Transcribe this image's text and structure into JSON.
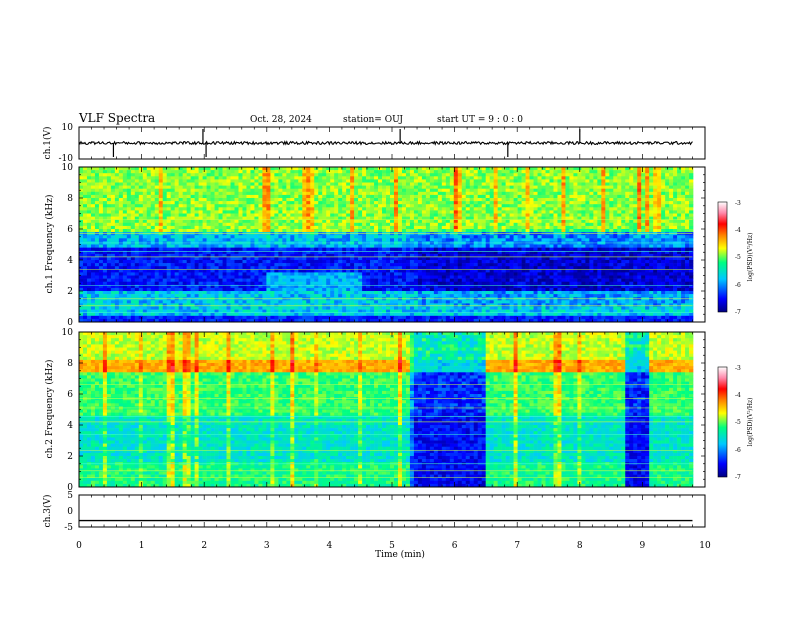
{
  "header": {
    "title": "VLF Spectra",
    "date": "Oct. 28, 2024",
    "station": "station= OUJ",
    "start": "start  UT =   9 : 0  : 0"
  },
  "chart_data": [
    {
      "type": "line",
      "name": "ch1-waveform",
      "ylabel": "ch.1(V)",
      "ylim": [
        -10,
        10
      ],
      "yticks": [
        "10",
        "-10"
      ],
      "x": [
        0,
        1,
        2,
        3,
        4,
        5,
        6,
        7,
        8,
        9,
        9.8
      ],
      "y": [
        0,
        0,
        0,
        0,
        0,
        0,
        0,
        0,
        0,
        0,
        0
      ],
      "spikes_min": [
        0.55,
        1.98,
        2.03,
        5.13,
        6.85,
        8.0
      ]
    },
    {
      "type": "heatmap",
      "name": "ch1-spectrogram",
      "ylabel": "ch.1  Frequency  (kHz)",
      "ylim": [
        0,
        10
      ],
      "yticks": [
        "0",
        "2",
        "4",
        "6",
        "8",
        "10"
      ],
      "colorbar": {
        "label": "log(PSD)(V²/Hz)",
        "range": [
          -7,
          -3
        ],
        "ticks": [
          "-3",
          "-4",
          "-5",
          "-6",
          "-7"
        ]
      },
      "quiet_band_khz": [
        2.0,
        4.8
      ],
      "active_band_khz": [
        5.8,
        10
      ]
    },
    {
      "type": "heatmap",
      "name": "ch2-spectrogram",
      "ylabel": "ch.2  Frequency  (kHz)",
      "ylim": [
        0,
        10
      ],
      "yticks": [
        "0",
        "2",
        "4",
        "6",
        "8",
        "10"
      ],
      "colorbar": {
        "label": "log(PSD)(V²/Hz)",
        "range": [
          -7,
          -3
        ],
        "ticks": [
          "-3",
          "-4",
          "-5",
          "-6",
          "-7"
        ]
      },
      "quiet_windows_min": [
        [
          5.3,
          6.5
        ],
        [
          8.75,
          9.1
        ]
      ],
      "strong_band_khz": [
        7.3,
        8.2
      ]
    },
    {
      "type": "line",
      "name": "ch3-waveform",
      "ylabel": "ch.3(V)",
      "ylim": [
        -5,
        5
      ],
      "yticks": [
        "5",
        "0",
        "-5"
      ],
      "x": [
        0,
        9.8
      ],
      "y": [
        -3,
        -3
      ]
    }
  ],
  "xaxis": {
    "label": "Time  (min)",
    "range": [
      0,
      10
    ],
    "ticks": [
      "0",
      "1",
      "2",
      "3",
      "4",
      "5",
      "6",
      "7",
      "8",
      "9",
      "10"
    ]
  },
  "colors": {
    "background": "#ffffff",
    "axes": "#000000",
    "scale": [
      "#000080",
      "#0000ff",
      "#00c8ff",
      "#00ff80",
      "#ffff00",
      "#ff8000",
      "#ff0000",
      "#ff88aa",
      "#ffffff"
    ]
  }
}
